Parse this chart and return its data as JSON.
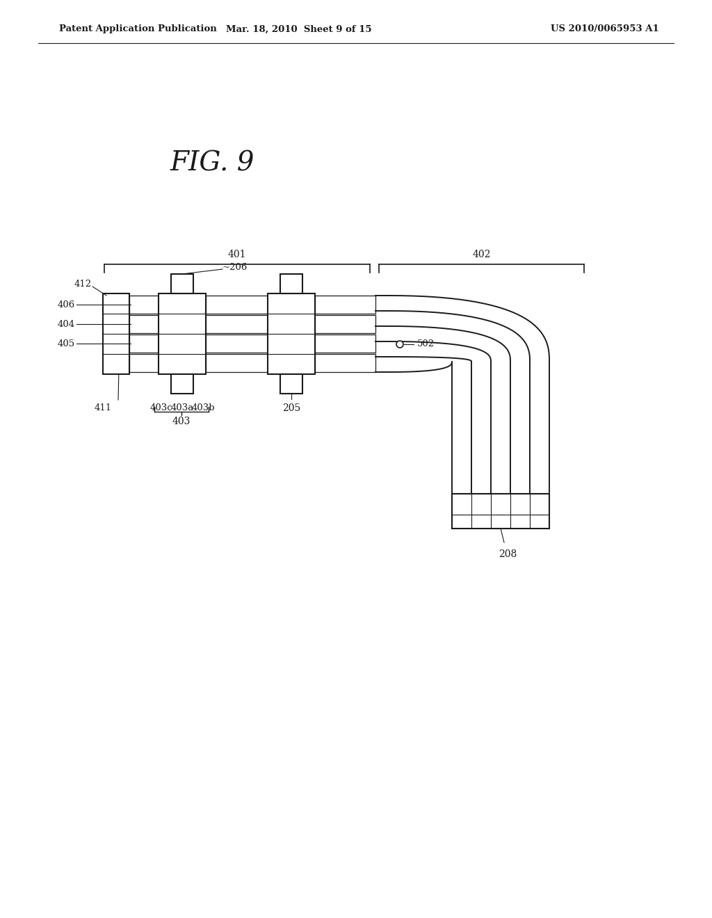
{
  "bg_color": "#ffffff",
  "line_color": "#1a1a1a",
  "header_left": "Patent Application Publication",
  "header_center": "Mar. 18, 2010  Sheet 9 of 15",
  "header_right": "US 2010/0065953 A1",
  "fig_title": "FIG. 9"
}
